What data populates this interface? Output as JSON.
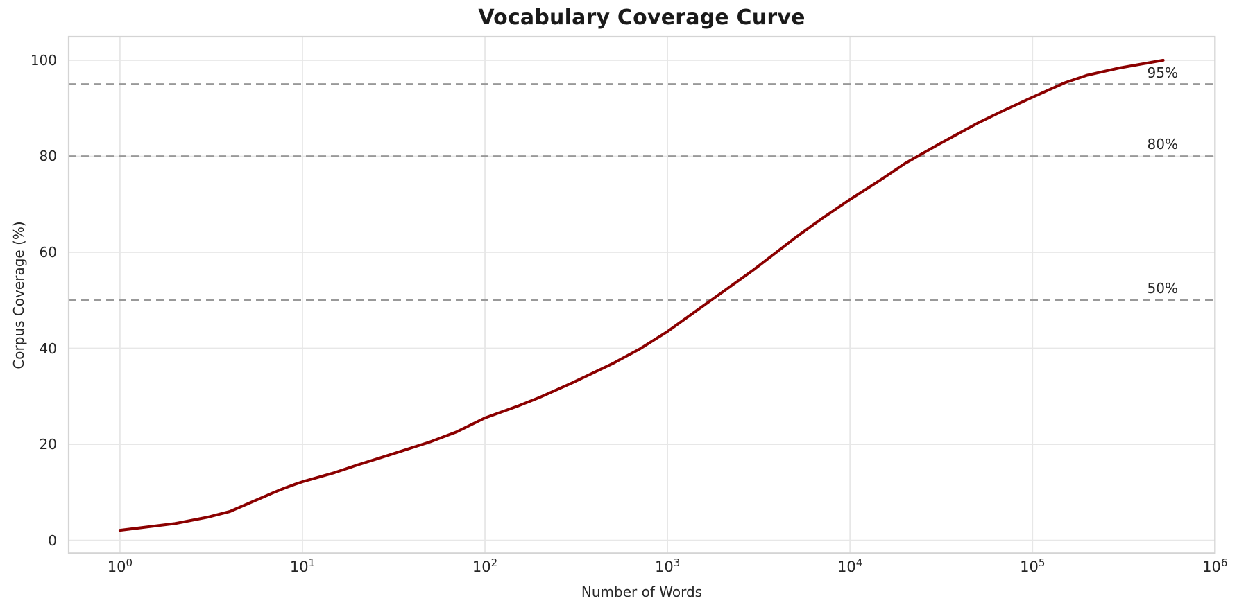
{
  "chart_data": {
    "type": "line",
    "title": "Vocabulary Coverage Curve",
    "xlabel": "Number of Words",
    "ylabel": "Corpus Coverage (%)",
    "x_scale": "log",
    "grid": true,
    "legend": "none",
    "xlim_log10": [
      -0.281,
      6.0
    ],
    "ylim": [
      -2.7,
      104.9
    ],
    "x_ticks": [
      {
        "v": 1,
        "base": "10",
        "exp": "0"
      },
      {
        "v": 10,
        "base": "10",
        "exp": "1"
      },
      {
        "v": 100,
        "base": "10",
        "exp": "2"
      },
      {
        "v": 1000,
        "base": "10",
        "exp": "3"
      },
      {
        "v": 10000,
        "base": "10",
        "exp": "4"
      },
      {
        "v": 100000,
        "base": "10",
        "exp": "5"
      },
      {
        "v": 1000000,
        "base": "10",
        "exp": "6"
      }
    ],
    "y_ticks": [
      {
        "v": 0,
        "label": "0"
      },
      {
        "v": 20,
        "label": "20"
      },
      {
        "v": 40,
        "label": "40"
      },
      {
        "v": 60,
        "label": "60"
      },
      {
        "v": 80,
        "label": "80"
      },
      {
        "v": 100,
        "label": "100"
      }
    ],
    "reference_lines": [
      {
        "y": 50,
        "label": "50%",
        "style": "dashed",
        "color": "#999999"
      },
      {
        "y": 80,
        "label": "80%",
        "style": "dashed",
        "color": "#999999"
      },
      {
        "y": 95,
        "label": "95%",
        "style": "dashed",
        "color": "#999999"
      }
    ],
    "series": [
      {
        "name": "Vocabulary coverage curve",
        "color": "#8B0000",
        "x": [
          1,
          2,
          3,
          4,
          5,
          6,
          7,
          8,
          9,
          10,
          15,
          20,
          30,
          50,
          70,
          100,
          150,
          200,
          300,
          500,
          700,
          1000,
          1500,
          2000,
          3000,
          5000,
          7000,
          10000,
          15000,
          20000,
          30000,
          50000,
          70000,
          100000,
          150000,
          200000,
          300000,
          520000
        ],
        "y": [
          2.1,
          3.5,
          4.8,
          6.0,
          7.6,
          8.9,
          10.0,
          10.9,
          11.6,
          12.2,
          14.1,
          15.7,
          17.8,
          20.5,
          22.6,
          25.5,
          27.9,
          29.8,
          32.8,
          36.8,
          39.8,
          43.5,
          48.3,
          51.7,
          56.5,
          63.0,
          67.0,
          71.0,
          75.3,
          78.5,
          82.3,
          86.9,
          89.6,
          92.3,
          95.3,
          96.9,
          98.4,
          100.0
        ]
      }
    ],
    "colors": {
      "curve": "#8B0000",
      "threshold": "#999999",
      "grid": "#e7e7e7",
      "spine": "#d4d4d4",
      "text": "#262626",
      "background": "#ffffff"
    }
  }
}
